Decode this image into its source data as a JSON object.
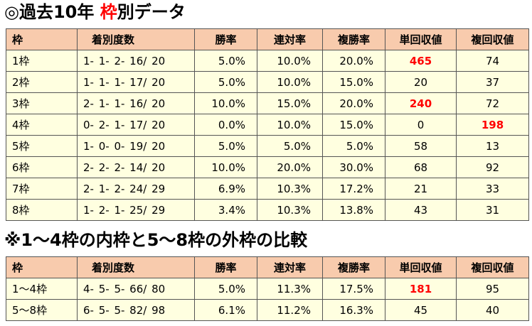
{
  "title1": {
    "prefix": "◎過去10年 ",
    "highlight": "枠",
    "suffix": "別データ"
  },
  "title2": "※1～4枠の内枠と5～8枠の外枠の比較",
  "headers": [
    "枠",
    "着別度数",
    "勝率",
    "連対率",
    "複勝率",
    "単回収値",
    "複回収値"
  ],
  "table1": {
    "rows": [
      [
        "1枠",
        "1- 1- 2- 16/ 20",
        "5.0%",
        "10.0%",
        "20.0%",
        "465",
        "74"
      ],
      [
        "2枠",
        "1- 1- 1- 17/ 20",
        "5.0%",
        "10.0%",
        "15.0%",
        "20",
        "37"
      ],
      [
        "3枠",
        "2- 1- 1- 16/ 20",
        "10.0%",
        "15.0%",
        "20.0%",
        "240",
        "72"
      ],
      [
        "4枠",
        "0- 2- 1- 17/ 20",
        "0.0%",
        "10.0%",
        "15.0%",
        "0",
        "198"
      ],
      [
        "5枠",
        "1- 0- 0- 19/ 20",
        "5.0%",
        "5.0%",
        "5.0%",
        "58",
        "13"
      ],
      [
        "6枠",
        "2- 2- 2- 14/ 20",
        "10.0%",
        "20.0%",
        "30.0%",
        "68",
        "92"
      ],
      [
        "7枠",
        "2- 1- 2- 24/ 29",
        "6.9%",
        "10.3%",
        "17.2%",
        "21",
        "33"
      ],
      [
        "8枠",
        "1- 2- 1- 25/ 29",
        "3.4%",
        "10.3%",
        "13.8%",
        "43",
        "31"
      ]
    ],
    "highlighted_cells": [
      [
        0,
        5
      ],
      [
        2,
        5
      ],
      [
        3,
        6
      ]
    ]
  },
  "table2": {
    "rows": [
      [
        "1～4枠",
        "4- 5- 5- 66/ 80",
        "5.0%",
        "11.3%",
        "17.5%",
        "181",
        "95"
      ],
      [
        "5～8枠",
        "6- 5- 5- 82/ 98",
        "6.1%",
        "11.2%",
        "16.3%",
        "45",
        "40"
      ]
    ],
    "highlighted_cells": [
      [
        0,
        5
      ]
    ]
  },
  "colors": {
    "header_bg": "#f8cbad",
    "cell_bg": "#ffffe0",
    "highlight_text": "#ff0000"
  }
}
